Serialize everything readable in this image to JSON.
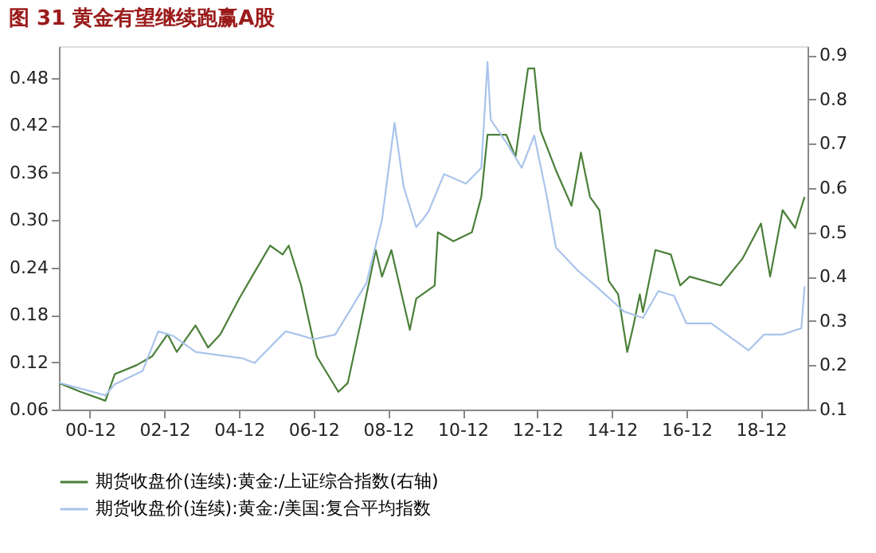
{
  "chart_data": {
    "type": "line",
    "title": "图 31 黄金有望继续跑赢A股",
    "xlim": [
      "2000-02",
      "2020-03"
    ],
    "xticks": [
      {
        "value": "2000-12",
        "label": "00-12"
      },
      {
        "value": "2002-12",
        "label": "02-12"
      },
      {
        "value": "2004-12",
        "label": "04-12"
      },
      {
        "value": "2006-12",
        "label": "06-12"
      },
      {
        "value": "2008-12",
        "label": "08-12"
      },
      {
        "value": "2010-12",
        "label": "10-12"
      },
      {
        "value": "2012-12",
        "label": "12-12"
      },
      {
        "value": "2014-12",
        "label": "14-12"
      },
      {
        "value": "2016-12",
        "label": "16-12"
      },
      {
        "value": "2018-12",
        "label": "18-12"
      }
    ],
    "ylim": [
      0.06,
      0.52
    ],
    "yticks": [
      0.06,
      0.12,
      0.18,
      0.24,
      {
        "value": 0.3,
        "label": "0.30"
      },
      0.36,
      0.42,
      0.48
    ],
    "y2lim": [
      0.1,
      0.92
    ],
    "y2ticks": [
      0.1,
      0.2,
      0.3,
      0.4,
      0.5,
      0.6,
      0.7,
      0.8,
      0.9
    ],
    "grid": false,
    "legend": "bottom",
    "marker": "none",
    "line_style": "solid",
    "series": [
      {
        "name": "期货收盘价(连续):黄金:/上证综合指数(右轴)",
        "color": "#4a7f38",
        "axis": "y2",
        "x": [
          "2000-02",
          "2000-09",
          "2001-05",
          "2001-08",
          "2002-03",
          "2002-08",
          "2003-01",
          "2003-04",
          "2003-10",
          "2004-02",
          "2004-06",
          "2004-12",
          "2005-05",
          "2005-10",
          "2006-02",
          "2006-04",
          "2006-08",
          "2007-01",
          "2007-08",
          "2007-11",
          "2008-03",
          "2008-08",
          "2008-10",
          "2009-01",
          "2009-07",
          "2009-09",
          "2010-03",
          "2010-04",
          "2010-09",
          "2011-03",
          "2011-06",
          "2011-08",
          "2012-02",
          "2012-05",
          "2012-09",
          "2012-11",
          "2013-01",
          "2013-06",
          "2013-11",
          "2014-02",
          "2014-05",
          "2014-08",
          "2014-11",
          "2015-02",
          "2015-05",
          "2015-07",
          "2015-09",
          "2015-10",
          "2016-02",
          "2016-07",
          "2016-10",
          "2017-01",
          "2017-11",
          "2018-06",
          "2018-12",
          "2019-03",
          "2019-07",
          "2019-11",
          "2020-02"
        ],
        "values": [
          0.16,
          0.14,
          0.12,
          0.18,
          0.2,
          0.22,
          0.27,
          0.23,
          0.29,
          0.24,
          0.27,
          0.35,
          0.41,
          0.47,
          0.45,
          0.47,
          0.38,
          0.22,
          0.14,
          0.16,
          0.29,
          0.46,
          0.4,
          0.46,
          0.28,
          0.35,
          0.38,
          0.5,
          0.48,
          0.5,
          0.58,
          0.72,
          0.72,
          0.67,
          0.87,
          0.87,
          0.73,
          0.64,
          0.56,
          0.68,
          0.58,
          0.55,
          0.39,
          0.36,
          0.23,
          0.29,
          0.36,
          0.32,
          0.46,
          0.45,
          0.38,
          0.4,
          0.38,
          0.44,
          0.52,
          0.4,
          0.55,
          0.51,
          0.58
        ]
      },
      {
        "name": "期货收盘价(连续):黄金:/美国:复合平均指数",
        "color": "#a9c4eb",
        "x": [
          "2000-02",
          "2001-05",
          "2001-08",
          "2002-05",
          "2002-10",
          "2003-03",
          "2003-10",
          "2005-01",
          "2005-05",
          "2006-03",
          "2006-07",
          "2006-12",
          "2007-07",
          "2008-01",
          "2008-05",
          "2008-10",
          "2009-02",
          "2009-05",
          "2009-09",
          "2009-11",
          "2010-01",
          "2010-06",
          "2011-01",
          "2011-06",
          "2011-08",
          "2011-09",
          "2012-02",
          "2012-07",
          "2012-11",
          "2013-03",
          "2013-06",
          "2014-01",
          "2014-07",
          "2015-04",
          "2015-10",
          "2016-03",
          "2016-08",
          "2016-12",
          "2017-08",
          "2018-08",
          "2019-01",
          "2019-07",
          "2020-01",
          "2020-02"
        ],
        "values": [
          0.094,
          0.078,
          0.092,
          0.109,
          0.159,
          0.153,
          0.133,
          0.125,
          0.119,
          0.159,
          0.155,
          0.149,
          0.155,
          0.194,
          0.22,
          0.3,
          0.423,
          0.342,
          0.291,
          0.3,
          0.311,
          0.358,
          0.346,
          0.366,
          0.5,
          0.427,
          0.398,
          0.366,
          0.407,
          0.332,
          0.265,
          0.236,
          0.216,
          0.184,
          0.176,
          0.21,
          0.204,
          0.169,
          0.169,
          0.135,
          0.155,
          0.155,
          0.163,
          0.216
        ]
      }
    ]
  }
}
